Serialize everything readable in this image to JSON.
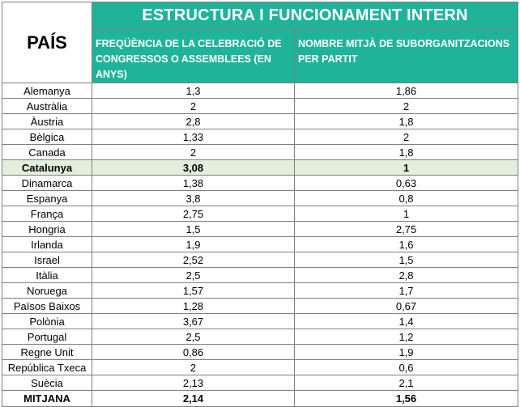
{
  "table": {
    "country_header": "PAÍS",
    "group_header": "ESTRUCTURA I FUNCIONAMENT INTERN",
    "col1_header": "FREQÜÈNCIA DE LA CELEBRACIÓ DE CONGRESSOS O ASSEMBLEES (EN ANYS)",
    "col2_header": "NOMBRE MITJÀ DE SUBORGANITZACIONS PER PARTIT",
    "rows": [
      {
        "country": "Alemanya",
        "freq": "1,3",
        "subs": "1,86"
      },
      {
        "country": "Austràlia",
        "freq": "2",
        "subs": "2"
      },
      {
        "country": "Àustria",
        "freq": "2,8",
        "subs": "1,8"
      },
      {
        "country": "Bèlgica",
        "freq": "1,33",
        "subs": "2"
      },
      {
        "country": "Canada",
        "freq": "2",
        "subs": "1,8"
      },
      {
        "country": "Catalunya",
        "freq": "3,08",
        "subs": "1"
      },
      {
        "country": "Dinamarca",
        "freq": "1,38",
        "subs": "0,63"
      },
      {
        "country": "Espanya",
        "freq": "3,8",
        "subs": "0,8"
      },
      {
        "country": "França",
        "freq": "2,75",
        "subs": "1"
      },
      {
        "country": "Hongria",
        "freq": "1,5",
        "subs": "2,75"
      },
      {
        "country": "Irlanda",
        "freq": "1,9",
        "subs": "1,6"
      },
      {
        "country": "Israel",
        "freq": "2,52",
        "subs": "1,5"
      },
      {
        "country": "Itàlia",
        "freq": "2,5",
        "subs": "2,8"
      },
      {
        "country": "Noruega",
        "freq": "1,57",
        "subs": "1,7"
      },
      {
        "country": "Països Baixos",
        "freq": "1,28",
        "subs": "0,67"
      },
      {
        "country": "Polònia",
        "freq": "3,67",
        "subs": "1,4"
      },
      {
        "country": "Portugal",
        "freq": "2,5",
        "subs": "1,2"
      },
      {
        "country": "Regne Unit",
        "freq": "0,86",
        "subs": "1,9"
      },
      {
        "country": "República Txeca",
        "freq": "2",
        "subs": "0,6"
      },
      {
        "country": "Suècia",
        "freq": "2,13",
        "subs": "2,1"
      }
    ],
    "highlight_row": 5,
    "highlight_color": "#e2efda",
    "header_color": "#1fb39a",
    "total": {
      "country": "MITJANA",
      "freq": "2,14",
      "subs": "1,56"
    }
  }
}
